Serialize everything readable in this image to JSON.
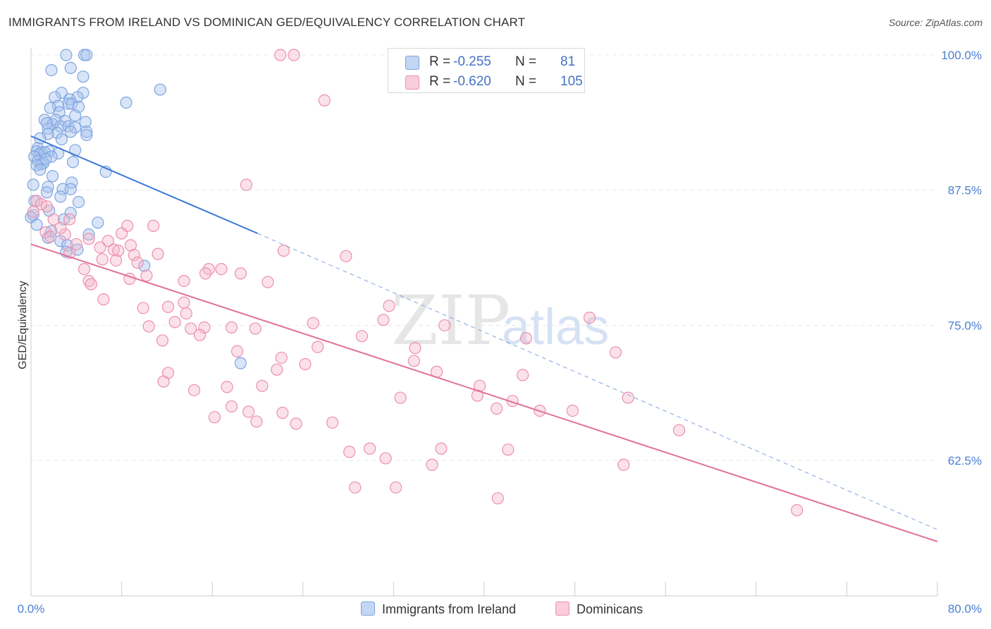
{
  "title": "IMMIGRANTS FROM IRELAND VS DOMINICAN GED/EQUIVALENCY CORRELATION CHART",
  "source": "Source: ZipAtlas.com",
  "watermark": {
    "zip": "ZIP",
    "atlas": "atlas"
  },
  "legend": {
    "rows": [
      {
        "r_label": "R =",
        "r_value": "-0.255",
        "n_label": "N =",
        "n_value": "81",
        "color": "#a9c4ee"
      },
      {
        "r_label": "R =",
        "r_value": "-0.620",
        "n_label": "N =",
        "n_value": "105",
        "color": "#f5b6c9"
      }
    ]
  },
  "bottom_legend": {
    "ireland": "Immigrants from Ireland",
    "dominicans": "Dominicans"
  },
  "chart_data": {
    "type": "scatter",
    "title": "IMMIGRANTS FROM IRELAND VS DOMINICAN GED/EQUIVALENCY CORRELATION CHART",
    "xlabel": "",
    "ylabel": "GED/Equivalency",
    "xlim": [
      0,
      80
    ],
    "ylim": [
      50,
      100
    ],
    "x_tick_labels": [
      "0.0%",
      "80.0%"
    ],
    "y_ticks": [
      62.5,
      75.0,
      87.5,
      100.0
    ],
    "y_tick_labels": [
      "62.5%",
      "75.0%",
      "87.5%",
      "100.0%"
    ],
    "grid": true,
    "legend_position": "top-center",
    "colors": {
      "ireland": "#4a7fd4",
      "ireland_fill": "#a9c4ee",
      "dominicans": "#e0709a",
      "dominicans_fill": "#f5b6c9"
    },
    "series": [
      {
        "name": "Immigrants from Ireland",
        "r": -0.255,
        "n": 81,
        "trend": {
          "x0": 0,
          "y0": 92.5,
          "x1": 20,
          "y1": 83.5,
          "dash_to_x": 80,
          "dash_to_y": 56.1
        },
        "points": [
          [
            3.1,
            100
          ],
          [
            4.7,
            100
          ],
          [
            4.9,
            100
          ],
          [
            3.5,
            98.8
          ],
          [
            1.8,
            98.6
          ],
          [
            4.6,
            98
          ],
          [
            11.4,
            96.8
          ],
          [
            4.6,
            96.5
          ],
          [
            2.7,
            96.5
          ],
          [
            2.1,
            96.1
          ],
          [
            4.1,
            96.1
          ],
          [
            3.4,
            95.9
          ],
          [
            8.4,
            95.6
          ],
          [
            3.3,
            95.5
          ],
          [
            3.6,
            95.5
          ],
          [
            2.4,
            95.3
          ],
          [
            4.2,
            95.2
          ],
          [
            1.7,
            95.1
          ],
          [
            2.5,
            94.7
          ],
          [
            3.9,
            94.4
          ],
          [
            1.2,
            94
          ],
          [
            2.2,
            94
          ],
          [
            3,
            93.9
          ],
          [
            4.8,
            93.8
          ],
          [
            1.9,
            93.6
          ],
          [
            2.6,
            93.4
          ],
          [
            3.3,
            93.4
          ],
          [
            3.9,
            93.3
          ],
          [
            1.5,
            93.2
          ],
          [
            4.9,
            92.9
          ],
          [
            3.5,
            92.9
          ],
          [
            2.3,
            92.8
          ],
          [
            1.5,
            92.7
          ],
          [
            4.9,
            92.6
          ],
          [
            0.6,
            91.4
          ],
          [
            0.5,
            91.1
          ],
          [
            3.9,
            91.2
          ],
          [
            1.6,
            91.1
          ],
          [
            0.9,
            91
          ],
          [
            1.2,
            91
          ],
          [
            2.4,
            90.9
          ],
          [
            0.7,
            90.8
          ],
          [
            0.3,
            90.6
          ],
          [
            1.8,
            90.6
          ],
          [
            0.6,
            90.2
          ],
          [
            1.1,
            90
          ],
          [
            3.7,
            90.1
          ],
          [
            0.9,
            89.9
          ],
          [
            0.5,
            89.8
          ],
          [
            0.8,
            89.4
          ],
          [
            6.6,
            89.2
          ],
          [
            3.6,
            88.2
          ],
          [
            0.2,
            88
          ],
          [
            1.5,
            87.8
          ],
          [
            2.8,
            87.6
          ],
          [
            3.5,
            87.6
          ],
          [
            1.4,
            87.3
          ],
          [
            2.6,
            86.9
          ],
          [
            0.3,
            86.5
          ],
          [
            3.5,
            85.4
          ],
          [
            0.2,
            85.2
          ],
          [
            1.6,
            85.6
          ],
          [
            5.9,
            84.5
          ],
          [
            5.1,
            83.4
          ],
          [
            1.5,
            83.1
          ],
          [
            2.6,
            82.8
          ],
          [
            3.2,
            82.4
          ],
          [
            3.1,
            81.8
          ],
          [
            0,
            85
          ],
          [
            10,
            80.5
          ],
          [
            18.5,
            71.5
          ],
          [
            0.5,
            84.3
          ],
          [
            1.8,
            83.7
          ],
          [
            2.9,
            84.8
          ],
          [
            4.1,
            82
          ],
          [
            0.8,
            92.3
          ],
          [
            1.4,
            93.7
          ],
          [
            2.7,
            92.2
          ],
          [
            1.3,
            90.4
          ],
          [
            1.9,
            88.8
          ],
          [
            4.2,
            86.4
          ]
        ]
      },
      {
        "name": "Dominicans",
        "r": -0.62,
        "n": 105,
        "trend": {
          "x0": 0,
          "y0": 82.5,
          "x1": 80,
          "y1": 55
        },
        "points": [
          [
            22,
            100
          ],
          [
            23.2,
            100
          ],
          [
            25.9,
            95.8
          ],
          [
            19,
            88
          ],
          [
            0.5,
            86.5
          ],
          [
            0.9,
            86.2
          ],
          [
            1.4,
            86
          ],
          [
            0.2,
            85.5
          ],
          [
            2,
            84.8
          ],
          [
            3.4,
            84.8
          ],
          [
            8.5,
            84.2
          ],
          [
            10.8,
            84.2
          ],
          [
            1.3,
            83.6
          ],
          [
            3,
            83.4
          ],
          [
            8,
            83.5
          ],
          [
            5.1,
            83
          ],
          [
            6.8,
            82.8
          ],
          [
            4,
            82.5
          ],
          [
            8.8,
            82.4
          ],
          [
            7.3,
            82
          ],
          [
            22.3,
            81.9
          ],
          [
            7.7,
            81.9
          ],
          [
            3.4,
            81.7
          ],
          [
            9.1,
            81.5
          ],
          [
            11.2,
            81.6
          ],
          [
            27.8,
            81.4
          ],
          [
            6.3,
            81.1
          ],
          [
            7.5,
            81
          ],
          [
            9.4,
            80.8
          ],
          [
            4.7,
            80.2
          ],
          [
            15.7,
            80.2
          ],
          [
            16.8,
            80.2
          ],
          [
            18.5,
            79.8
          ],
          [
            15.4,
            79.8
          ],
          [
            8.7,
            79.3
          ],
          [
            10.2,
            79.6
          ],
          [
            5.1,
            79.1
          ],
          [
            13.5,
            79.1
          ],
          [
            20.9,
            79
          ],
          [
            5.3,
            78.8
          ],
          [
            6.4,
            77.4
          ],
          [
            13.5,
            77.1
          ],
          [
            12.1,
            76.7
          ],
          [
            31.6,
            76.8
          ],
          [
            9.9,
            76.6
          ],
          [
            13.7,
            76.1
          ],
          [
            31.1,
            75.5
          ],
          [
            49.3,
            75.7
          ],
          [
            12.7,
            75.3
          ],
          [
            24.9,
            75.2
          ],
          [
            36.5,
            75
          ],
          [
            10.4,
            74.9
          ],
          [
            15.3,
            74.8
          ],
          [
            17.7,
            74.8
          ],
          [
            14.1,
            74.7
          ],
          [
            19.8,
            74.7
          ],
          [
            14.9,
            74.1
          ],
          [
            29.2,
            74
          ],
          [
            43.7,
            73.8
          ],
          [
            11.6,
            73.6
          ],
          [
            25.3,
            73
          ],
          [
            33.9,
            72.9
          ],
          [
            18.2,
            72.6
          ],
          [
            51.6,
            72.5
          ],
          [
            22.1,
            72
          ],
          [
            33.8,
            71.7
          ],
          [
            24.2,
            71.4
          ],
          [
            21.7,
            70.9
          ],
          [
            35.8,
            70.7
          ],
          [
            12.1,
            70.6
          ],
          [
            43.4,
            70.4
          ],
          [
            11.7,
            69.8
          ],
          [
            20.4,
            69.4
          ],
          [
            17.3,
            69.3
          ],
          [
            39.6,
            69.4
          ],
          [
            14.4,
            69
          ],
          [
            39.4,
            68.5
          ],
          [
            32.6,
            68.3
          ],
          [
            52.7,
            68.3
          ],
          [
            42.5,
            68
          ],
          [
            17.7,
            67.5
          ],
          [
            41.1,
            67.3
          ],
          [
            47.8,
            67.1
          ],
          [
            44.9,
            67.1
          ],
          [
            19.2,
            67
          ],
          [
            22.2,
            66.9
          ],
          [
            16.2,
            66.5
          ],
          [
            19.9,
            66.1
          ],
          [
            26.6,
            66
          ],
          [
            23.4,
            65.9
          ],
          [
            57.2,
            65.3
          ],
          [
            36.2,
            63.6
          ],
          [
            29.9,
            63.6
          ],
          [
            42.1,
            63.5
          ],
          [
            28.1,
            63.3
          ],
          [
            31.3,
            62.7
          ],
          [
            35.4,
            62.1
          ],
          [
            52.3,
            62.1
          ],
          [
            28.6,
            60
          ],
          [
            32.2,
            60
          ],
          [
            41.2,
            59
          ],
          [
            67.6,
            57.9
          ],
          [
            1.7,
            83.2
          ],
          [
            2.6,
            84
          ],
          [
            6.1,
            82.2
          ]
        ]
      }
    ]
  }
}
